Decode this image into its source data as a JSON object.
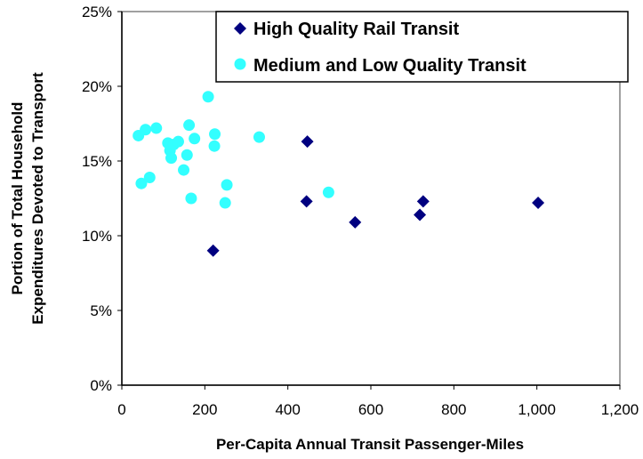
{
  "chart_data": {
    "type": "scatter",
    "title": "",
    "xlabel": "Per-Capita Annual Transit Passenger-Miles",
    "ylabel_lines": [
      "Portion of Total Household",
      "Expenditures Devoted to Transport"
    ],
    "xlim": [
      0,
      1200
    ],
    "ylim": [
      0,
      25
    ],
    "x_ticks": [
      0,
      200,
      400,
      600,
      800,
      1000,
      1200
    ],
    "x_tick_labels": [
      "0",
      "200",
      "400",
      "600",
      "800",
      "1,000",
      "1,200"
    ],
    "y_ticks": [
      0,
      5,
      10,
      15,
      20,
      25
    ],
    "y_tick_labels": [
      "0%",
      "5%",
      "10%",
      "15%",
      "20%",
      "25%"
    ],
    "grid": false,
    "legend_position": "top-right",
    "series": [
      {
        "name": "High Quality Rail Transit",
        "marker": "diamond",
        "color": "#000080",
        "points": [
          {
            "x": 220,
            "y": 9.0
          },
          {
            "x": 445,
            "y": 12.3
          },
          {
            "x": 447,
            "y": 16.3
          },
          {
            "x": 562,
            "y": 10.9
          },
          {
            "x": 718,
            "y": 11.4
          },
          {
            "x": 726,
            "y": 12.3
          },
          {
            "x": 1003,
            "y": 12.2
          }
        ]
      },
      {
        "name": "Medium and Low Quality Transit",
        "marker": "circle",
        "color": "#33FFFF",
        "points": [
          {
            "x": 40,
            "y": 16.7
          },
          {
            "x": 47,
            "y": 13.5
          },
          {
            "x": 57,
            "y": 17.1
          },
          {
            "x": 67,
            "y": 13.9
          },
          {
            "x": 83,
            "y": 17.2
          },
          {
            "x": 111,
            "y": 16.2
          },
          {
            "x": 116,
            "y": 15.7
          },
          {
            "x": 119,
            "y": 15.2
          },
          {
            "x": 125,
            "y": 16.1
          },
          {
            "x": 136,
            "y": 16.3
          },
          {
            "x": 149,
            "y": 14.4
          },
          {
            "x": 157,
            "y": 15.4
          },
          {
            "x": 162,
            "y": 17.4
          },
          {
            "x": 167,
            "y": 12.5
          },
          {
            "x": 175,
            "y": 16.5
          },
          {
            "x": 208,
            "y": 19.3
          },
          {
            "x": 223,
            "y": 16.0
          },
          {
            "x": 224,
            "y": 16.8
          },
          {
            "x": 249,
            "y": 12.2
          },
          {
            "x": 253,
            "y": 13.4
          },
          {
            "x": 331,
            "y": 16.6
          },
          {
            "x": 498,
            "y": 12.9
          }
        ]
      }
    ]
  }
}
